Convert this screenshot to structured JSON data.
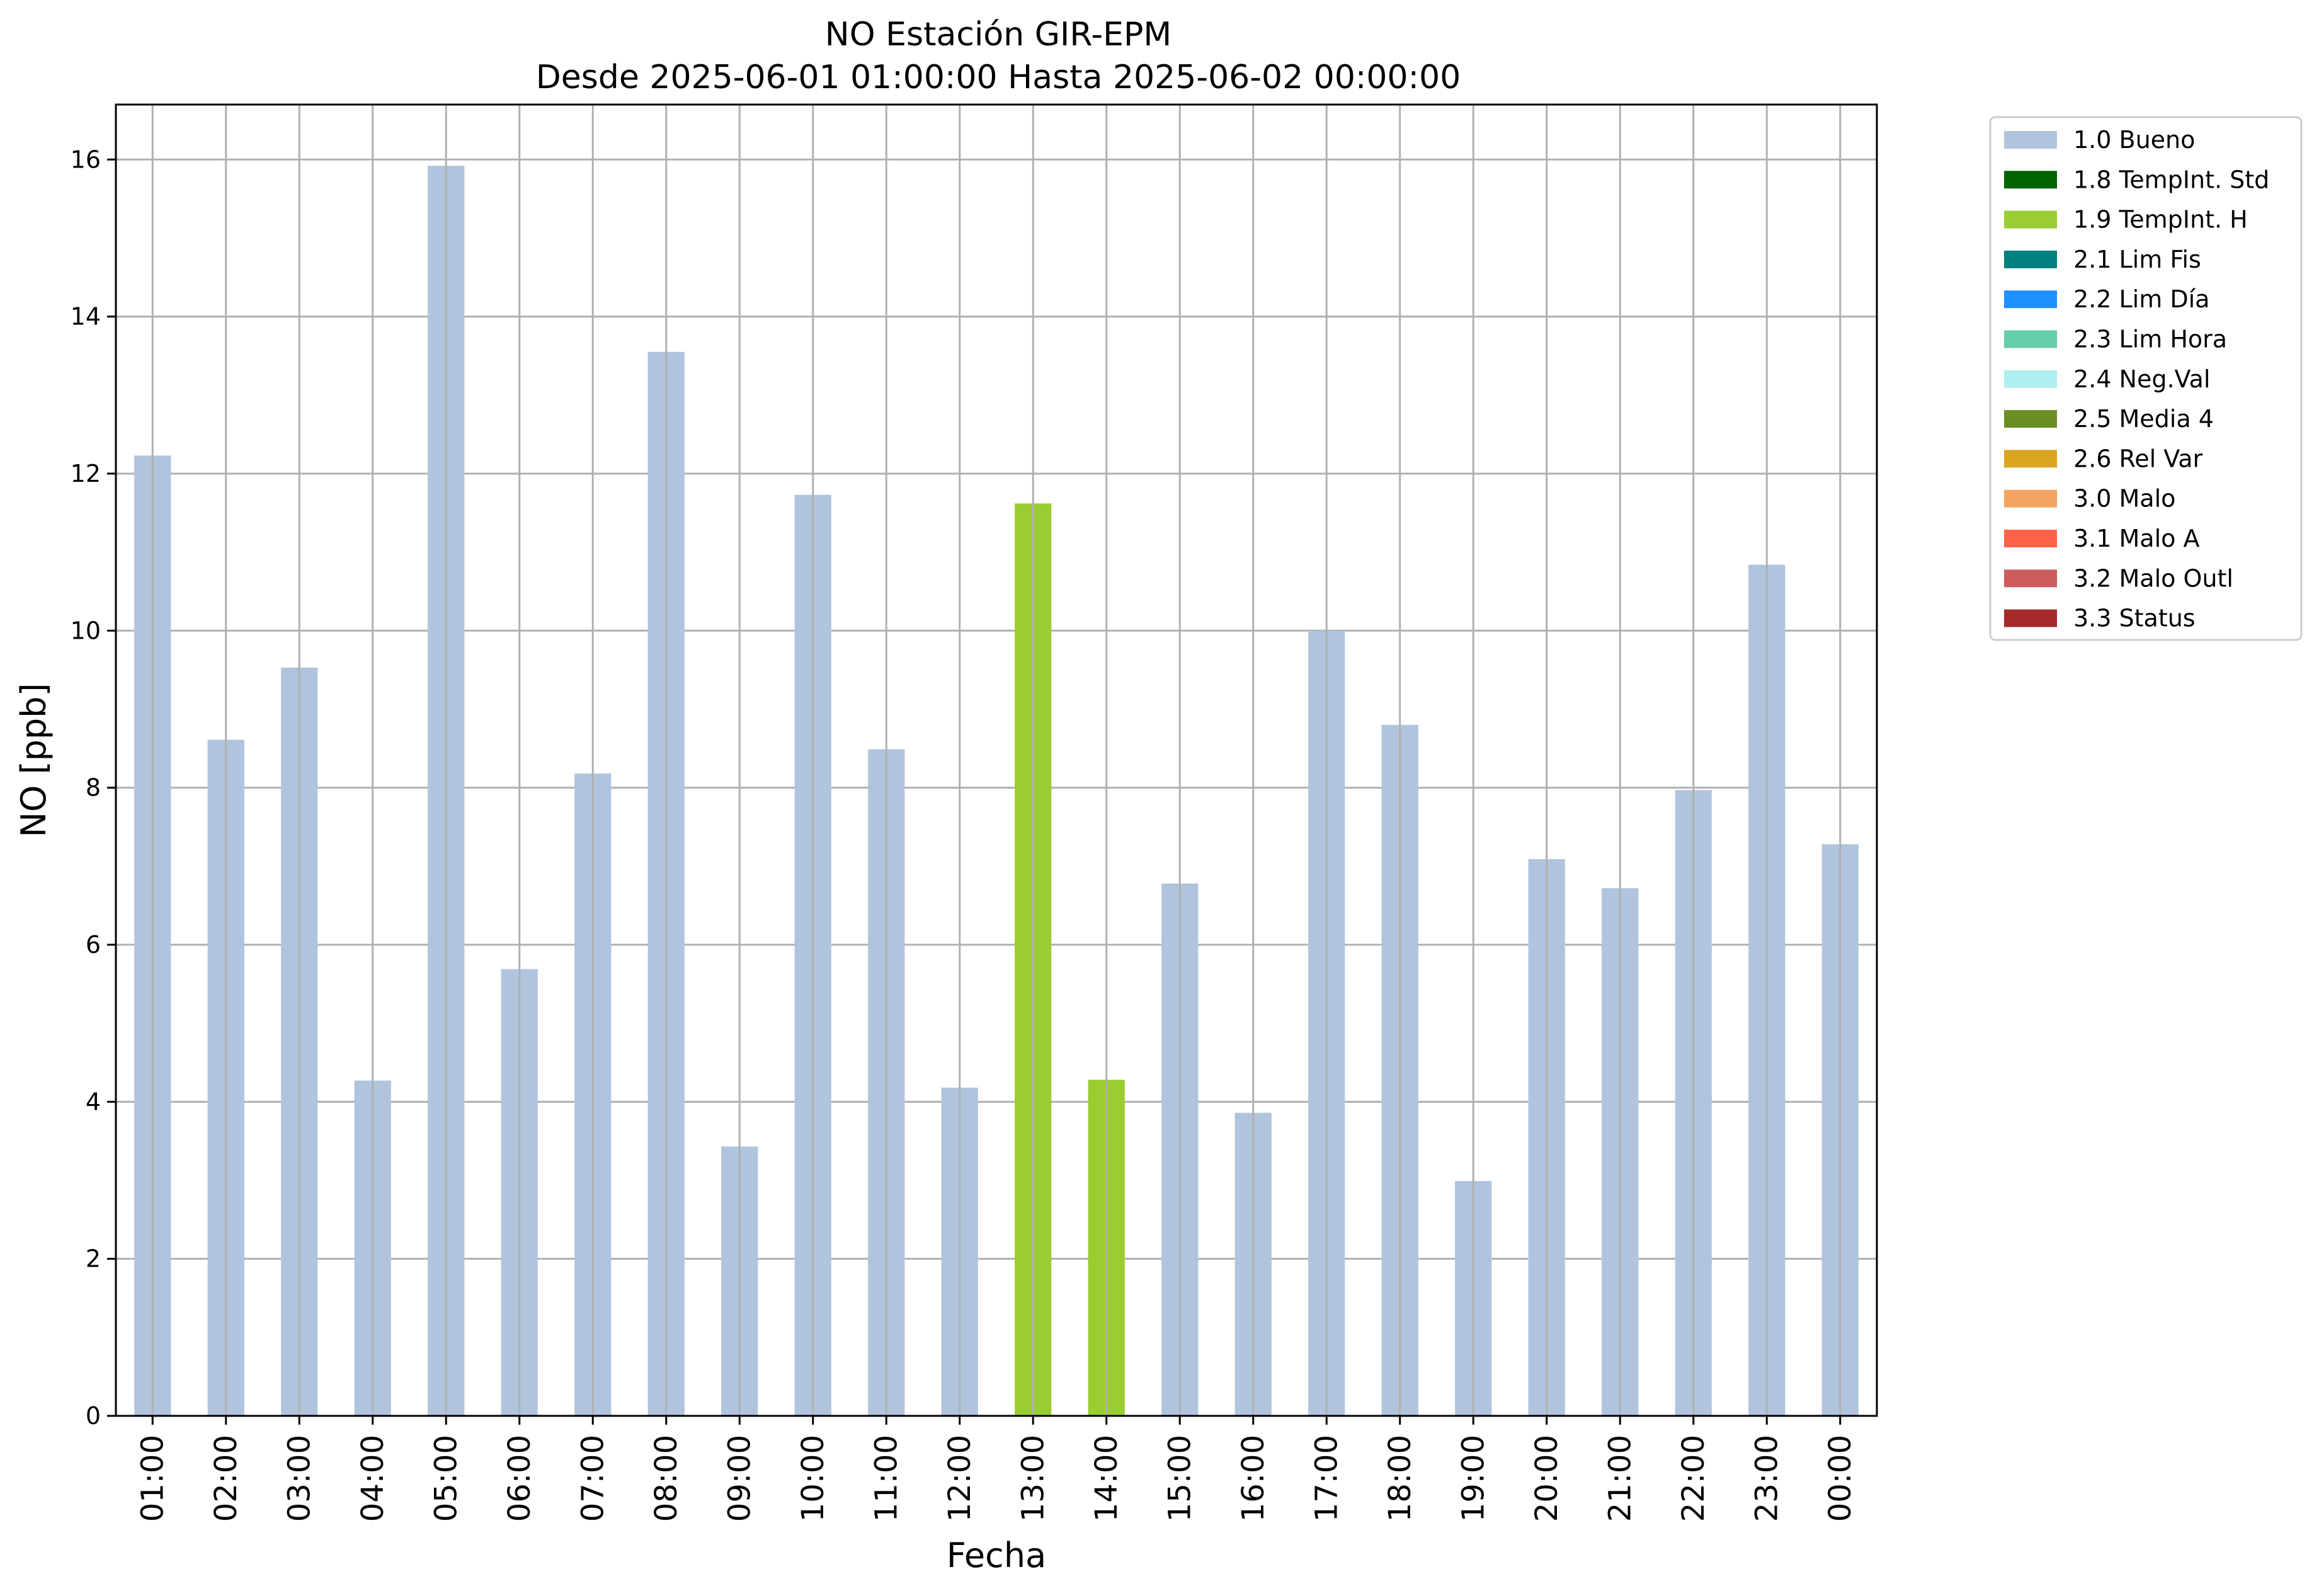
{
  "chart_data": {
    "type": "bar",
    "title": "NO Estación GIR-EPM",
    "subtitle": "Desde 2025-06-01 01:00:00 Hasta 2025-06-02 00:00:00",
    "xlabel": "Fecha",
    "ylabel": "NO [ppb]",
    "ylim": [
      0,
      16.7
    ],
    "yticks": [
      "0",
      "2",
      "4",
      "6",
      "8",
      "10",
      "12",
      "14",
      "16"
    ],
    "grid": true,
    "legend_position": "outside-top-right",
    "categories": [
      "01:00",
      "02:00",
      "03:00",
      "04:00",
      "05:00",
      "06:00",
      "07:00",
      "08:00",
      "09:00",
      "10:00",
      "11:00",
      "12:00",
      "13:00",
      "14:00",
      "15:00",
      "16:00",
      "17:00",
      "18:00",
      "19:00",
      "20:00",
      "21:00",
      "22:00",
      "23:00",
      "00:00"
    ],
    "values": [
      12.23,
      8.61,
      9.53,
      4.27,
      15.92,
      5.69,
      8.18,
      13.55,
      3.43,
      11.73,
      8.49,
      4.18,
      11.62,
      4.28,
      6.78,
      3.86,
      10.0,
      8.8,
      2.99,
      7.09,
      6.72,
      7.97,
      10.84,
      7.28
    ],
    "flags": [
      "1.0 Bueno",
      "1.0 Bueno",
      "1.0 Bueno",
      "1.0 Bueno",
      "1.0 Bueno",
      "1.0 Bueno",
      "1.0 Bueno",
      "1.0 Bueno",
      "1.0 Bueno",
      "1.0 Bueno",
      "1.0 Bueno",
      "1.0 Bueno",
      "1.9 TempInt. H",
      "1.9 TempInt. H",
      "1.0 Bueno",
      "1.0 Bueno",
      "1.0 Bueno",
      "1.0 Bueno",
      "1.0 Bueno",
      "1.0 Bueno",
      "1.0 Bueno",
      "1.0 Bueno",
      "1.0 Bueno",
      "1.0 Bueno"
    ],
    "legend": [
      {
        "name": "1.0 Bueno",
        "color": "#b0c4de"
      },
      {
        "name": "1.8 TempInt. Std",
        "color": "#006400"
      },
      {
        "name": "1.9 TempInt. H",
        "color": "#9acd32"
      },
      {
        "name": "2.1 Lim Fis",
        "color": "#008080"
      },
      {
        "name": "2.2 Lim Día",
        "color": "#1e90ff"
      },
      {
        "name": "2.3 Lim Hora",
        "color": "#66cdaa"
      },
      {
        "name": "2.4 Neg.Val",
        "color": "#afeeee"
      },
      {
        "name": "2.5 Media 4",
        "color": "#6b8e23"
      },
      {
        "name": "2.6 Rel Var",
        "color": "#daa520"
      },
      {
        "name": "3.0 Malo",
        "color": "#f4a460"
      },
      {
        "name": "3.1 Malo A",
        "color": "#ff6347"
      },
      {
        "name": "3.2 Malo Outl",
        "color": "#cd5c5c"
      },
      {
        "name": "3.3 Status",
        "color": "#a52a2a"
      }
    ]
  }
}
